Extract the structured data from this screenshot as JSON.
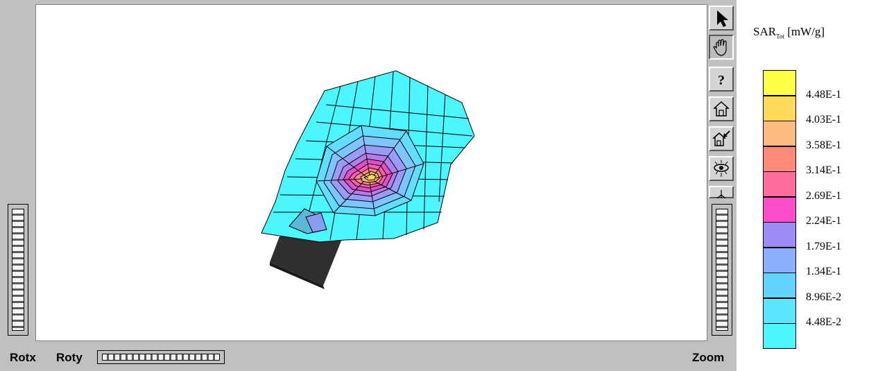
{
  "labels": {
    "rotx": "Rotx",
    "roty": "Roty",
    "zoom": "Zoom"
  },
  "legend": {
    "title_main": "SAR",
    "title_sub": "Tot",
    "title_unit": "[mW/g]",
    "swatches": [
      "#ffff45",
      "#ffda5a",
      "#ffba80",
      "#ff8a7a",
      "#ff6ca0",
      "#ff4cc8",
      "#9e8cf6",
      "#8cb0ff",
      "#64d4ff",
      "#5ae6ff",
      "#4cf6fc"
    ],
    "ticks": [
      "4.48E-1",
      "4.03E-1",
      "3.58E-1",
      "3.14E-1",
      "2.69E-1",
      "2.24E-1",
      "1.79E-1",
      "1.34E-1",
      "8.96E-2",
      "4.48E-2"
    ]
  },
  "toolbar": {
    "tools": [
      "pointer-arrow",
      "pan-hand",
      "help-question",
      "home-view",
      "home-view-zoom",
      "eye-view",
      "axis-view"
    ],
    "help_glyph": "?"
  },
  "colors": {
    "panel": "#c0c0c0",
    "viewport": "#ffffff",
    "mesh_base": "#4cf6fc",
    "phone_body": "#2e2e2e"
  }
}
